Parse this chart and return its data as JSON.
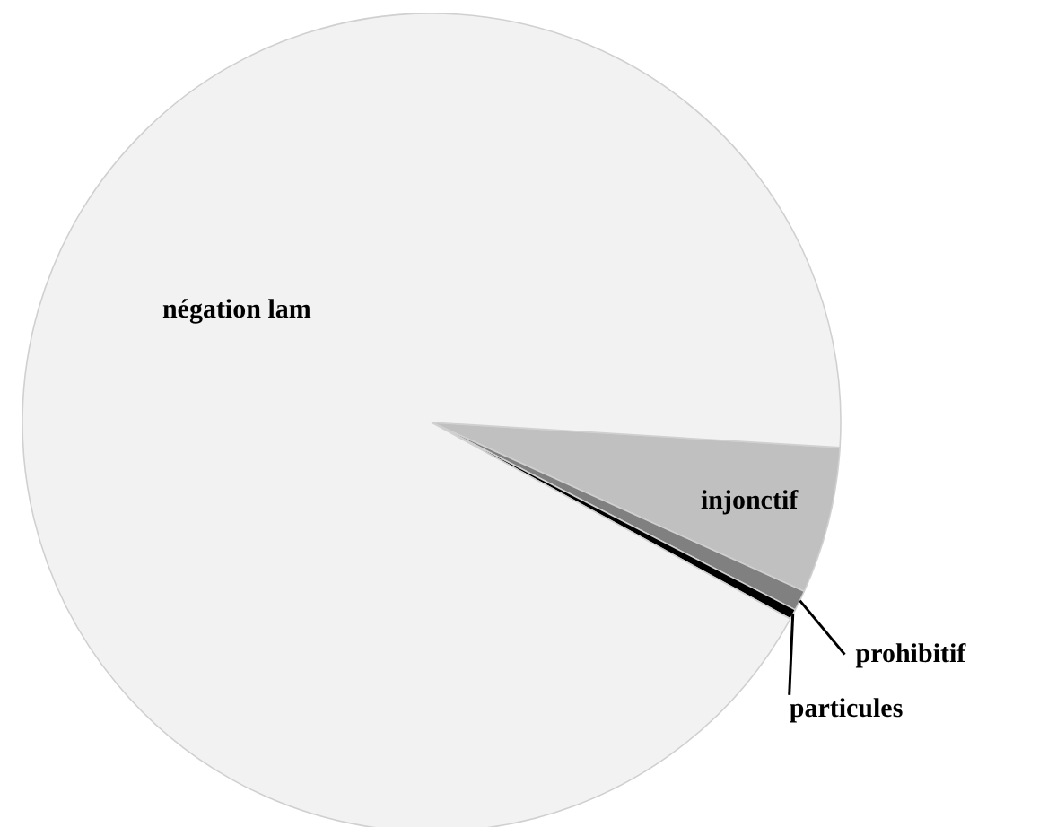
{
  "chart_data": {
    "type": "pie",
    "categories": [
      "injonctif",
      "prohibitif",
      "particules",
      "négation lam"
    ],
    "values": [
      5.8,
      0.8,
      0.4,
      93.0
    ],
    "colors": [
      "#c0c0c0",
      "#808080",
      "#000000",
      "#f2f2f2"
    ]
  }
}
